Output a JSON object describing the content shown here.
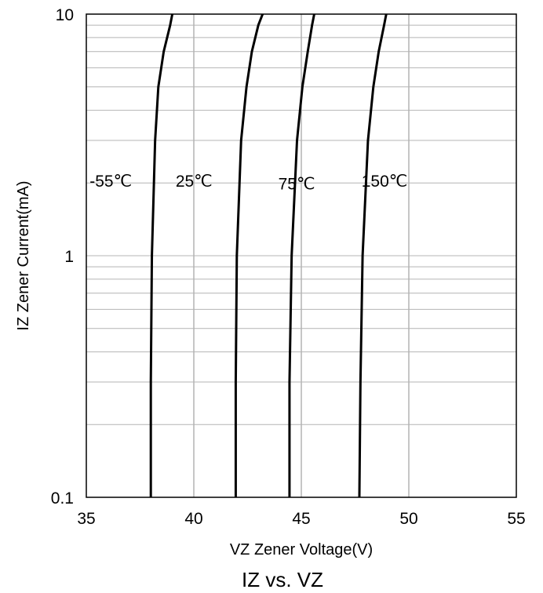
{
  "chart_data": {
    "type": "line",
    "title": "IZ vs. VZ",
    "xlabel": "VZ Zener Voltage(V)",
    "ylabel": "IZ Zener Current(mA)",
    "xlim": [
      35,
      55
    ],
    "ylim": [
      0.1,
      10
    ],
    "yscale": "log",
    "grid": true,
    "x_ticks": [
      35,
      40,
      45,
      50,
      55
    ],
    "x_tick_labels": [
      "35",
      "40",
      "45",
      "50",
      "55"
    ],
    "y_ticks": [
      0.1,
      1,
      10
    ],
    "y_tick_labels": [
      "0.1",
      "1",
      "10"
    ],
    "series": [
      {
        "name": "-55℃",
        "points": [
          [
            38.0,
            0.1
          ],
          [
            38.0,
            0.3
          ],
          [
            38.05,
            1
          ],
          [
            38.2,
            3
          ],
          [
            38.35,
            5
          ],
          [
            38.6,
            7
          ],
          [
            38.9,
            9
          ],
          [
            39.0,
            10
          ]
        ]
      },
      {
        "name": "25℃",
        "points": [
          [
            41.95,
            0.1
          ],
          [
            41.95,
            0.3
          ],
          [
            42.0,
            1
          ],
          [
            42.2,
            3
          ],
          [
            42.45,
            5
          ],
          [
            42.7,
            7
          ],
          [
            43.0,
            9
          ],
          [
            43.2,
            10
          ]
        ]
      },
      {
        "name": "75℃",
        "points": [
          [
            44.45,
            0.1
          ],
          [
            44.45,
            0.3
          ],
          [
            44.55,
            1
          ],
          [
            44.8,
            3
          ],
          [
            45.05,
            5
          ],
          [
            45.3,
            7
          ],
          [
            45.5,
            9
          ],
          [
            45.6,
            10
          ]
        ]
      },
      {
        "name": "150℃",
        "points": [
          [
            47.7,
            0.1
          ],
          [
            47.75,
            0.3
          ],
          [
            47.85,
            1
          ],
          [
            48.1,
            3
          ],
          [
            48.35,
            5
          ],
          [
            48.6,
            7
          ],
          [
            48.85,
            9
          ],
          [
            48.95,
            10
          ]
        ]
      }
    ]
  }
}
